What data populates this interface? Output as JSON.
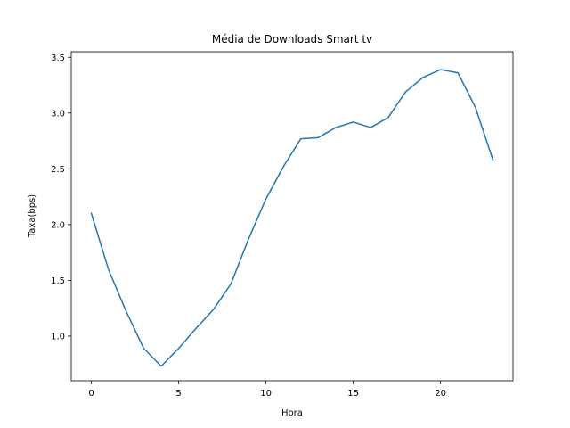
{
  "chart_data": {
    "type": "line",
    "title": "Média de Downloads Smart tv",
    "xlabel": "Hora",
    "ylabel": "Taxa(bps)",
    "xlim": [
      -1.15,
      24.15
    ],
    "ylim": [
      0.6,
      3.55
    ],
    "xticks": [
      0,
      5,
      10,
      15,
      20
    ],
    "yticks": [
      1.0,
      1.5,
      2.0,
      2.5,
      3.0,
      3.5
    ],
    "ytick_labels": [
      "1.0",
      "1.5",
      "2.0",
      "2.5",
      "3.0",
      "3.5"
    ],
    "grid": false,
    "legend": "none",
    "series": [
      {
        "color": "#1f77b4",
        "x": [
          0,
          1,
          2,
          3,
          4,
          5,
          6,
          7,
          8,
          9,
          10,
          11,
          12,
          13,
          14,
          15,
          16,
          17,
          18,
          19,
          20,
          21,
          22,
          23
        ],
        "y": [
          2.1,
          1.59,
          1.22,
          0.89,
          0.73,
          0.89,
          1.07,
          1.24,
          1.47,
          1.87,
          2.23,
          2.52,
          2.77,
          2.78,
          2.87,
          2.92,
          2.87,
          2.96,
          3.19,
          3.32,
          3.39,
          3.36,
          3.05,
          2.58
        ]
      }
    ]
  }
}
